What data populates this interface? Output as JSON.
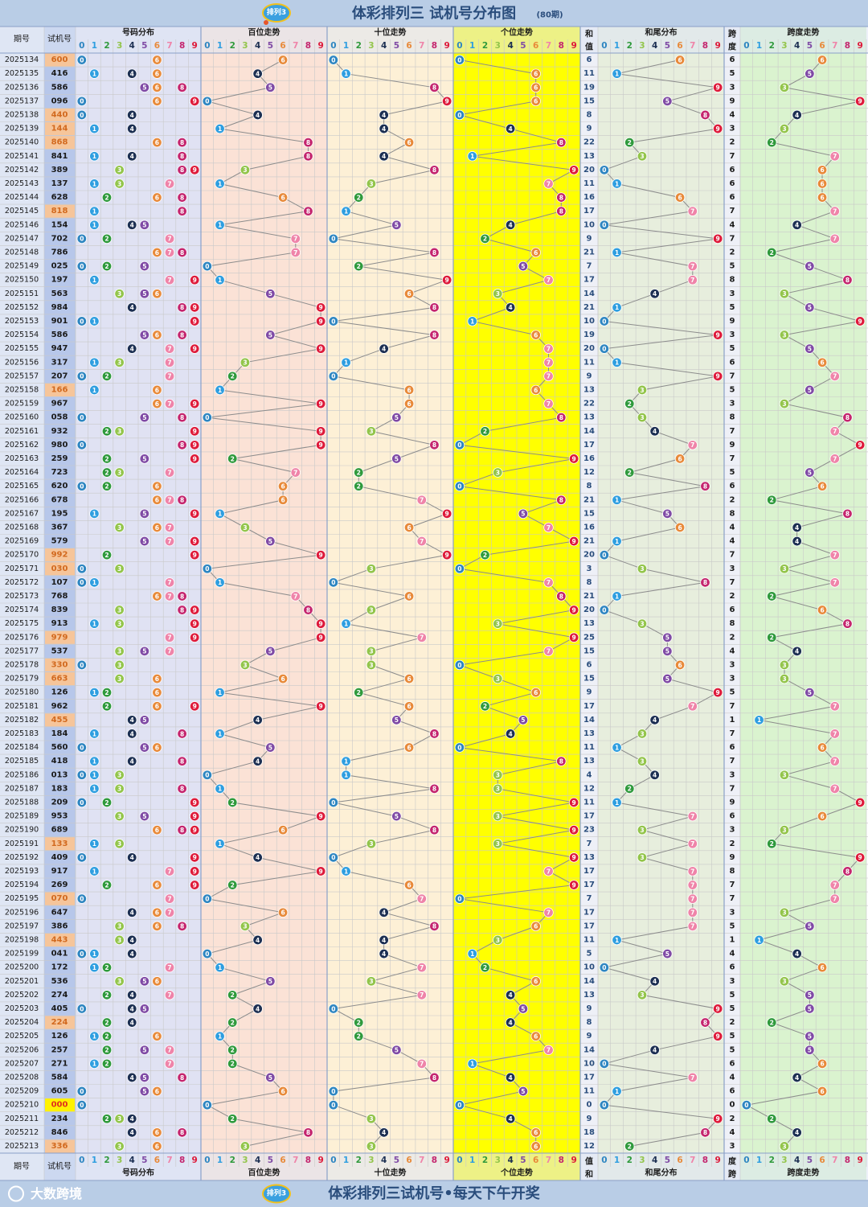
{
  "title": "体彩排列三 试机号分布图",
  "title_sub": "(80期)",
  "logo_text": "排列3",
  "footer_brand": "大数跨境",
  "footer_text": "体彩排列三试机号•每天下午开奖",
  "headers": {
    "period": "期号",
    "number": "试机号",
    "dist": "号码分布",
    "hundreds": "百位走势",
    "tens": "十位走势",
    "units": "个位走势",
    "sum_a": "和",
    "sum_b": "值",
    "sumtail": "和尾分布",
    "span_a": "跨",
    "span_b": "度",
    "spantrend": "跨度走势"
  },
  "digits": [
    "0",
    "1",
    "2",
    "3",
    "4",
    "5",
    "6",
    "7",
    "8",
    "9"
  ],
  "colors": {
    "title_bar": "#b9cde6",
    "title_text": "#2a4d7c",
    "grid": "#c9c9c9",
    "line": "#8c8c8c",
    "period_bg": "#dfe6f4",
    "number_bg": "#b7c7ea",
    "highlight_pair": "#f6c59a",
    "highlight_triple": "#fff200",
    "dist_bg": "#e0e2f3",
    "hundreds_bg": "#fbe2d6",
    "tens_bg": "#fdf0d6",
    "units_bg": "#ffff00",
    "sum_bg": "#eef0f7",
    "sumtail_bg": "#e7eedd",
    "span_bg": "#e9f6da",
    "spantrend_bg": "#daf3cf",
    "header_bg": "#dfe6f4",
    "ball": [
      "#2e86c1",
      "#2e9ee0",
      "#2f9a3c",
      "#93c54b",
      "#1c2f52",
      "#7f4aa5",
      "#e88a3a",
      "#ef84a9",
      "#c4256e",
      "#de1a3a"
    ]
  },
  "chart_data": {
    "type": "table",
    "x_label": "期号",
    "periods": [
      "2025134",
      "2025135",
      "2025136",
      "2025137",
      "2025138",
      "2025139",
      "2025140",
      "2025141",
      "2025142",
      "2025143",
      "2025144",
      "2025145",
      "2025146",
      "2025147",
      "2025148",
      "2025149",
      "2025150",
      "2025151",
      "2025152",
      "2025153",
      "2025154",
      "2025155",
      "2025156",
      "2025157",
      "2025158",
      "2025159",
      "2025160",
      "2025161",
      "2025162",
      "2025163",
      "2025164",
      "2025165",
      "2025166",
      "2025167",
      "2025168",
      "2025169",
      "2025170",
      "2025171",
      "2025172",
      "2025173",
      "2025174",
      "2025175",
      "2025176",
      "2025177",
      "2025178",
      "2025179",
      "2025180",
      "2025181",
      "2025182",
      "2025183",
      "2025184",
      "2025185",
      "2025186",
      "2025187",
      "2025188",
      "2025189",
      "2025190",
      "2025191",
      "2025192",
      "2025193",
      "2025194",
      "2025195",
      "2025196",
      "2025197",
      "2025198",
      "2025199",
      "2025200",
      "2025201",
      "2025202",
      "2025203",
      "2025204",
      "2025205",
      "2025206",
      "2025207",
      "2025208",
      "2025209",
      "2025210",
      "2025211",
      "2025212",
      "2025213"
    ],
    "numbers": [
      "600",
      "416",
      "586",
      "096",
      "440",
      "144",
      "868",
      "841",
      "389",
      "137",
      "628",
      "818",
      "154",
      "702",
      "786",
      "025",
      "197",
      "563",
      "984",
      "901",
      "586",
      "947",
      "317",
      "207",
      "166",
      "967",
      "058",
      "932",
      "980",
      "259",
      "723",
      "620",
      "678",
      "195",
      "367",
      "579",
      "992",
      "030",
      "107",
      "768",
      "839",
      "913",
      "979",
      "537",
      "330",
      "663",
      "126",
      "962",
      "455",
      "184",
      "560",
      "418",
      "013",
      "183",
      "209",
      "953",
      "689",
      "133",
      "409",
      "917",
      "269",
      "070",
      "647",
      "386",
      "443",
      "041",
      "172",
      "536",
      "274",
      "405",
      "224",
      "126",
      "257",
      "271",
      "584",
      "605",
      "000",
      "234",
      "846",
      "336"
    ],
    "sums": [
      6,
      11,
      19,
      15,
      8,
      9,
      22,
      13,
      20,
      11,
      16,
      17,
      10,
      9,
      21,
      7,
      17,
      14,
      21,
      10,
      19,
      20,
      11,
      9,
      13,
      22,
      13,
      14,
      17,
      16,
      12,
      8,
      21,
      15,
      16,
      21,
      20,
      3,
      8,
      21,
      20,
      13,
      25,
      15,
      6,
      15,
      9,
      17,
      14,
      13,
      11,
      13,
      4,
      12,
      11,
      17,
      23,
      7,
      13,
      17,
      17,
      7,
      17,
      17,
      11,
      5,
      10,
      14,
      13,
      9,
      8,
      9,
      14,
      10,
      17,
      11,
      0,
      9,
      18,
      12
    ],
    "spans": [
      6,
      5,
      3,
      9,
      4,
      3,
      2,
      7,
      6,
      6,
      6,
      7,
      4,
      7,
      2,
      5,
      8,
      3,
      5,
      9,
      3,
      5,
      6,
      7,
      5,
      3,
      8,
      7,
      9,
      7,
      5,
      6,
      2,
      8,
      4,
      4,
      7,
      3,
      7,
      2,
      6,
      8,
      2,
      4,
      3,
      3,
      5,
      7,
      1,
      7,
      6,
      7,
      3,
      7,
      9,
      6,
      3,
      2,
      9,
      8,
      7,
      7,
      3,
      5,
      1,
      4,
      6,
      3,
      5,
      5,
      2,
      5,
      5,
      6,
      4,
      6,
      0,
      2,
      4,
      3
    ]
  }
}
